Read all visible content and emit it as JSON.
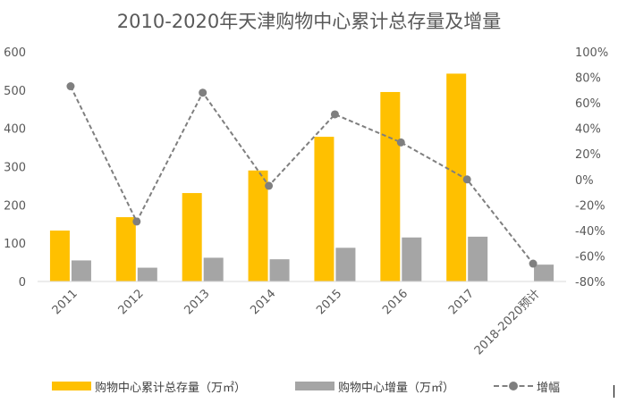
{
  "chart_data": {
    "type": "bar",
    "title": "2010-2020年天津购物中心累计总存量及增量",
    "categories": [
      "2011",
      "2012",
      "2013",
      "2014",
      "2015",
      "2016",
      "2017",
      "2018-2020预计"
    ],
    "series": [
      {
        "name": "购物中心累计总存量（万㎡）",
        "type": "bar",
        "axis": "left",
        "color": "#FFC000",
        "values": [
          133,
          168,
          231,
          290,
          378,
          495,
          543,
          null
        ]
      },
      {
        "name": "购物中心增量（万㎡）",
        "type": "bar",
        "axis": "left",
        "color": "#A5A5A5",
        "values": [
          55,
          36,
          62,
          58,
          88,
          115,
          117,
          44
        ]
      },
      {
        "name": "增幅",
        "type": "line",
        "axis": "right",
        "color": "#7F7F7F",
        "dashed": true,
        "values": [
          73,
          -33,
          68,
          -5,
          51,
          29,
          0,
          -66
        ]
      }
    ],
    "ylim_left": [
      0,
      600
    ],
    "yticks_left": [
      "0",
      "100",
      "200",
      "300",
      "400",
      "500",
      "600"
    ],
    "ylim_right": [
      -80,
      100
    ],
    "yticks_right": [
      "-80%",
      "-60%",
      "-40%",
      "-20%",
      "0%",
      "20%",
      "40%",
      "60%",
      "80%",
      "100%"
    ],
    "grid": false,
    "legend_position": "bottom"
  }
}
